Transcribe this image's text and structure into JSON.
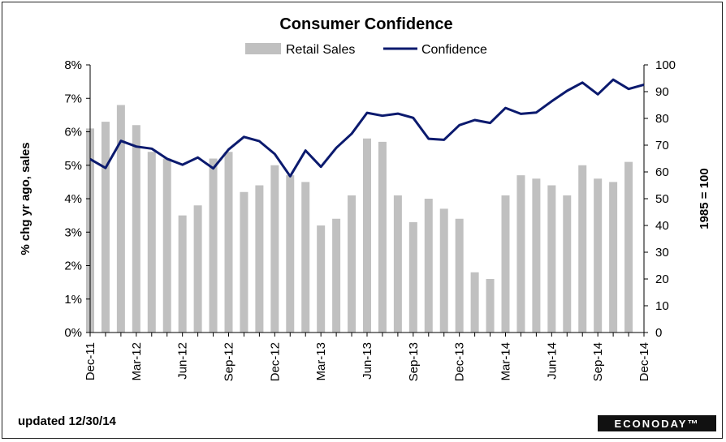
{
  "chart_data": {
    "type": "bar",
    "title": "Consumer Confidence",
    "ylabel_left": "% chg yr ago, sales",
    "ylabel_right": "1985 = 100",
    "y_left_ticks": [
      "0%",
      "1%",
      "2%",
      "3%",
      "4%",
      "5%",
      "6%",
      "7%",
      "8%"
    ],
    "y_right_ticks": [
      "0",
      "10",
      "20",
      "30",
      "40",
      "50",
      "60",
      "70",
      "80",
      "90",
      "100"
    ],
    "ylim_left": [
      0,
      8
    ],
    "ylim_right": [
      0,
      100
    ],
    "x_tick_labels": [
      "Dec-11",
      "Mar-12",
      "Jun-12",
      "Sep-12",
      "Dec-12",
      "Mar-13",
      "Jun-13",
      "Sep-13",
      "Dec-13",
      "Mar-14",
      "Jun-14",
      "Sep-14",
      "Dec-14"
    ],
    "categories": [
      "Dec-11",
      "Jan-12",
      "Feb-12",
      "Mar-12",
      "Apr-12",
      "May-12",
      "Jun-12",
      "Jul-12",
      "Aug-12",
      "Sep-12",
      "Oct-12",
      "Nov-12",
      "Dec-12",
      "Jan-13",
      "Feb-13",
      "Mar-13",
      "Apr-13",
      "May-13",
      "Jun-13",
      "Jul-13",
      "Aug-13",
      "Sep-13",
      "Oct-13",
      "Nov-13",
      "Dec-13",
      "Jan-14",
      "Feb-14",
      "Mar-14",
      "Apr-14",
      "May-14",
      "Jun-14",
      "Jul-14",
      "Aug-14",
      "Sep-14",
      "Oct-14",
      "Nov-14",
      "Dec-14"
    ],
    "series": [
      {
        "name": "Retail Sales",
        "axis": "left",
        "kind": "bar",
        "color": "#c0c0c0",
        "values": [
          6.1,
          6.3,
          6.8,
          6.2,
          5.4,
          5.2,
          3.5,
          3.8,
          5.2,
          5.4,
          4.2,
          4.4,
          5.0,
          4.7,
          4.5,
          3.2,
          3.4,
          4.1,
          5.8,
          5.7,
          4.1,
          3.3,
          4.0,
          3.7,
          3.4,
          1.8,
          1.6,
          4.1,
          4.7,
          4.6,
          4.4,
          4.1,
          5.0,
          4.6,
          4.5,
          5.1,
          0
        ]
      },
      {
        "name": "Confidence",
        "axis": "right",
        "kind": "line",
        "color": "#0b1a6e",
        "values": [
          64.8,
          61.5,
          71.6,
          69.5,
          68.7,
          64.9,
          62.7,
          65.4,
          61.3,
          68.4,
          73.1,
          71.5,
          66.7,
          58.4,
          68.0,
          61.9,
          69.0,
          74.3,
          82.1,
          81.0,
          81.8,
          80.2,
          72.4,
          72.0,
          77.5,
          79.4,
          78.3,
          83.9,
          81.7,
          82.2,
          86.4,
          90.3,
          93.4,
          89.0,
          94.5,
          91.0,
          92.6
        ]
      }
    ],
    "legend_position": "top-center",
    "grid": false
  },
  "footer": {
    "updated": "updated 12/30/14",
    "brand": "ECONODAY™"
  }
}
